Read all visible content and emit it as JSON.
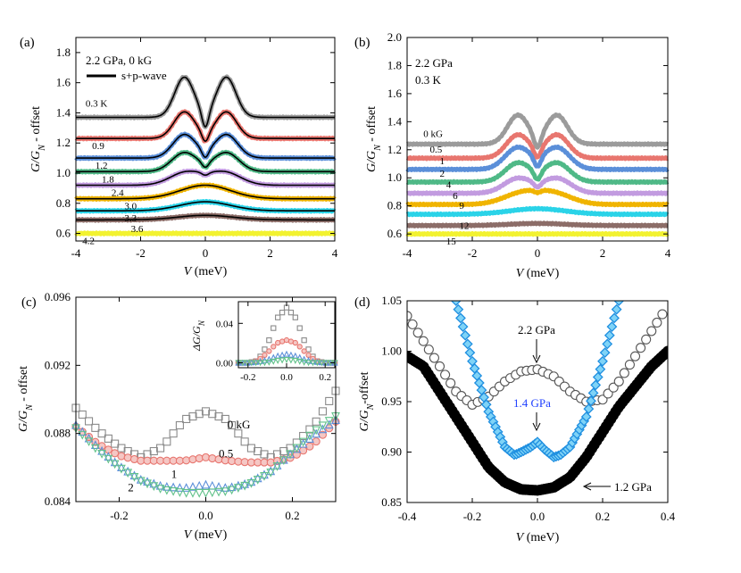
{
  "chart_data": [
    {
      "id": "a",
      "type": "line",
      "panel_label": "(a)",
      "xlabel": "V",
      "xunit": " (meV)",
      "ylabel": "G/G_N - offset",
      "xlim": [
        -4,
        4
      ],
      "ylim": [
        0.55,
        1.9
      ],
      "xticks": [
        -4,
        -2,
        0,
        2,
        4
      ],
      "yticks": [
        0.6,
        0.8,
        1.0,
        1.2,
        1.4,
        1.6,
        1.8
      ],
      "ytick_labels": [
        "0.6",
        "0.8",
        "1.0",
        "1.2",
        "1.4",
        "1.6",
        "1.8"
      ],
      "annotation_lines": [
        "2.2 GPa, 0 kG"
      ],
      "legend": [
        {
          "label": "s+p-wave",
          "style": "black line"
        }
      ],
      "series": [
        {
          "name": "0.3 K",
          "baseline": 1.37,
          "peak_height": 0.26,
          "peak_position": 0.65,
          "peak_width": 0.42,
          "dip_depth": 0.12,
          "color": "#9b9b9b"
        },
        {
          "name": "0.9",
          "baseline": 1.23,
          "peak_height": 0.17,
          "peak_position": 0.65,
          "peak_width": 0.45,
          "dip_depth": 0.07,
          "color": "#e8766f"
        },
        {
          "name": "1.2",
          "baseline": 1.1,
          "peak_height": 0.15,
          "peak_position": 0.65,
          "peak_width": 0.5,
          "dip_depth": 0.06,
          "color": "#5b8fd9"
        },
        {
          "name": "1.8",
          "baseline": 1.01,
          "peak_height": 0.12,
          "peak_position": 0.65,
          "peak_width": 0.55,
          "dip_depth": 0.04,
          "color": "#4fb987"
        },
        {
          "name": "2.4",
          "baseline": 0.92,
          "peak_height": 0.08,
          "peak_position": 0.6,
          "peak_width": 0.7,
          "dip_depth": 0.02,
          "color": "#c29be0"
        },
        {
          "name": "3.0",
          "baseline": 0.83,
          "peak_height": 0.09,
          "peak_position": 0.0,
          "peak_width": 1.1,
          "dip_depth": 0.0,
          "color": "#f0b400"
        },
        {
          "name": "3.3",
          "baseline": 0.75,
          "peak_height": 0.06,
          "peak_position": 0.0,
          "peak_width": 1.1,
          "dip_depth": 0.0,
          "color": "#2ad3e8"
        },
        {
          "name": "3.6",
          "baseline": 0.69,
          "peak_height": 0.03,
          "peak_position": 0.0,
          "peak_width": 1.2,
          "dip_depth": 0.0,
          "color": "#8c6d68"
        },
        {
          "name": "4.2",
          "baseline": 0.6,
          "peak_height": 0.0,
          "peak_position": 0.0,
          "peak_width": 1.0,
          "dip_depth": 0.0,
          "color": "#f2f230"
        }
      ]
    },
    {
      "id": "b",
      "type": "line",
      "panel_label": "(b)",
      "xlabel": "V",
      "xunit": " (meV)",
      "ylabel": "G/G_N - offset",
      "xlim": [
        -4,
        4
      ],
      "ylim": [
        0.55,
        2.0
      ],
      "xticks": [
        -4,
        -2,
        0,
        2,
        4
      ],
      "yticks": [
        0.6,
        0.8,
        1.0,
        1.2,
        1.4,
        1.6,
        1.8,
        2.0
      ],
      "ytick_labels": [
        "0.6",
        "0.8",
        "1.0",
        "1.2",
        "1.4",
        "1.6",
        "1.8",
        "2.0"
      ],
      "annotation_lines": [
        "2.2 GPa",
        "0.3 K"
      ],
      "series": [
        {
          "name": "0 kG",
          "baseline": 1.24,
          "peak_height": 0.2,
          "peak_position": 0.6,
          "peak_width": 0.45,
          "dip_depth": 0.1,
          "color": "#9b9b9b"
        },
        {
          "name": "0.5",
          "baseline": 1.14,
          "peak_height": 0.16,
          "peak_position": 0.6,
          "peak_width": 0.5,
          "dip_depth": 0.08,
          "color": "#e8766f"
        },
        {
          "name": "1",
          "baseline": 1.06,
          "peak_height": 0.15,
          "peak_position": 0.6,
          "peak_width": 0.55,
          "dip_depth": 0.08,
          "color": "#5b8fd9"
        },
        {
          "name": "2",
          "baseline": 0.97,
          "peak_height": 0.13,
          "peak_position": 0.6,
          "peak_width": 0.55,
          "dip_depth": 0.07,
          "color": "#4fb987"
        },
        {
          "name": "4",
          "baseline": 0.89,
          "peak_height": 0.1,
          "peak_position": 0.6,
          "peak_width": 0.6,
          "dip_depth": 0.04,
          "color": "#c29be0"
        },
        {
          "name": "6",
          "baseline": 0.81,
          "peak_height": 0.07,
          "peak_position": 0.5,
          "peak_width": 0.8,
          "dip_depth": 0.02,
          "color": "#f0b400"
        },
        {
          "name": "9",
          "baseline": 0.74,
          "peak_height": 0.04,
          "peak_position": 0.0,
          "peak_width": 1.2,
          "dip_depth": 0.0,
          "color": "#2ad3e8"
        },
        {
          "name": "12",
          "baseline": 0.66,
          "peak_height": 0.015,
          "peak_position": 0.0,
          "peak_width": 1.2,
          "dip_depth": 0.0,
          "color": "#8c6d68"
        },
        {
          "name": "15",
          "baseline": 0.6,
          "peak_height": 0.0,
          "peak_position": 0.0,
          "peak_width": 1.0,
          "dip_depth": 0.0,
          "color": "#f2f230"
        }
      ]
    },
    {
      "id": "c",
      "type": "scatter",
      "panel_label": "(c)",
      "xlabel": "V",
      "xunit": " (meV)",
      "ylabel": "G/G_N - offset",
      "xlim": [
        -0.3,
        0.3
      ],
      "ylim": [
        0.084,
        0.096
      ],
      "xticks": [
        -0.2,
        0.0,
        0.2
      ],
      "xtick_labels": [
        "-0.2",
        "0.0",
        "0.2"
      ],
      "yticks": [
        0.084,
        0.088,
        0.092,
        0.096
      ],
      "ytick_labels": [
        "0.084",
        "0.088",
        "0.092",
        "0.096"
      ],
      "series": [
        {
          "name": "0 kG",
          "marker": "square",
          "color": "#8a8a8a",
          "x": [
            -0.3,
            -0.25,
            -0.2,
            -0.15,
            -0.1,
            -0.05,
            0.0,
            0.05,
            0.1,
            0.15,
            0.2,
            0.25,
            0.3
          ],
          "y": [
            0.0895,
            0.0882,
            0.0872,
            0.0866,
            0.0872,
            0.0888,
            0.0893,
            0.0888,
            0.0872,
            0.0866,
            0.0872,
            0.0885,
            0.0905
          ]
        },
        {
          "name": "0.5",
          "marker": "circle",
          "color": "#e8766f",
          "x": [
            -0.3,
            -0.25,
            -0.2,
            -0.15,
            -0.1,
            -0.05,
            0.0,
            0.05,
            0.1,
            0.15,
            0.2,
            0.25,
            0.3
          ],
          "y": [
            0.0884,
            0.0874,
            0.0867,
            0.0864,
            0.0864,
            0.0864,
            0.0866,
            0.0864,
            0.0863,
            0.0863,
            0.0866,
            0.0874,
            0.0887
          ]
        },
        {
          "name": "1",
          "marker": "triangle-up",
          "color": "#5b8fd9",
          "x": [
            -0.3,
            -0.25,
            -0.2,
            -0.15,
            -0.1,
            -0.05,
            0.0,
            0.05,
            0.1,
            0.15,
            0.2,
            0.25,
            0.3
          ],
          "y": [
            0.0885,
            0.0872,
            0.0861,
            0.0853,
            0.0849,
            0.0848,
            0.085,
            0.0848,
            0.0851,
            0.0858,
            0.0869,
            0.0879,
            0.0888
          ]
        },
        {
          "name": "2",
          "marker": "triangle-down",
          "color": "#62c28a",
          "x": [
            -0.3,
            -0.25,
            -0.2,
            -0.15,
            -0.1,
            -0.05,
            0.0,
            0.05,
            0.1,
            0.15,
            0.2,
            0.25,
            0.3
          ],
          "y": [
            0.0883,
            0.087,
            0.086,
            0.0852,
            0.0847,
            0.0845,
            0.0845,
            0.0846,
            0.085,
            0.0857,
            0.0869,
            0.0881,
            0.089
          ]
        }
      ],
      "series_label_positions": [
        [
          0.05,
          0.0883
        ],
        [
          0.03,
          0.0866
        ],
        [
          -0.08,
          0.0854
        ],
        [
          -0.18,
          0.0846
        ]
      ],
      "inset": {
        "ylabel": "ΔG/G_N",
        "xlim": [
          -0.25,
          0.25
        ],
        "ylim": [
          -0.005,
          0.062
        ],
        "xticks": [
          -0.2,
          0.0,
          0.2
        ],
        "xtick_labels": [
          "-0.2",
          "0.0",
          "0.2"
        ],
        "yticks": [
          0.0,
          0.04
        ],
        "ytick_labels": [
          "0.00",
          "0.04"
        ],
        "series": [
          {
            "name": "0 kG",
            "marker": "square",
            "color": "#8a8a8a",
            "x": [
              -0.25,
              -0.2,
              -0.15,
              -0.1,
              -0.05,
              0.0,
              0.05,
              0.1,
              0.15,
              0.2,
              0.25
            ],
            "y": [
              0.0,
              0.0,
              0.002,
              0.018,
              0.045,
              0.056,
              0.045,
              0.018,
              0.002,
              0.0,
              0.0
            ]
          },
          {
            "name": "0.5",
            "marker": "circle",
            "color": "#e8766f",
            "x": [
              -0.25,
              -0.2,
              -0.15,
              -0.1,
              -0.05,
              0.0,
              0.05,
              0.1,
              0.15,
              0.2,
              0.25
            ],
            "y": [
              0.0,
              0.0,
              0.002,
              0.01,
              0.02,
              0.023,
              0.02,
              0.01,
              0.002,
              0.0,
              0.0
            ]
          },
          {
            "name": "1",
            "marker": "triangle-up",
            "color": "#5b8fd9",
            "x": [
              -0.25,
              -0.2,
              -0.15,
              -0.1,
              -0.05,
              0.0,
              0.05,
              0.1,
              0.15,
              0.2,
              0.25
            ],
            "y": [
              0.0,
              0.0,
              0.001,
              0.003,
              0.007,
              0.009,
              0.007,
              0.003,
              0.001,
              0.0,
              0.0
            ]
          },
          {
            "name": "2",
            "marker": "triangle-down",
            "color": "#62c28a",
            "x": [
              -0.25,
              -0.2,
              -0.15,
              -0.1,
              -0.05,
              0.0,
              0.05,
              0.1,
              0.15,
              0.2,
              0.25
            ],
            "y": [
              0.0,
              0.0,
              0.0,
              0.0,
              0.002,
              0.003,
              0.002,
              0.0,
              0.0,
              0.0,
              0.0
            ]
          }
        ]
      }
    },
    {
      "id": "d",
      "type": "scatter",
      "panel_label": "(d)",
      "xlabel": "V",
      "xunit": " (meV)",
      "ylabel": "G/G_N-offset",
      "xlim": [
        -0.4,
        0.4
      ],
      "ylim": [
        0.85,
        1.05
      ],
      "xticks": [
        -0.4,
        -0.2,
        0.0,
        0.2,
        0.4
      ],
      "xtick_labels": [
        "-0.4",
        "-0.2",
        "0.0",
        "0.2",
        "0.4"
      ],
      "yticks": [
        0.85,
        0.9,
        0.95,
        1.0,
        1.05
      ],
      "ytick_labels": [
        "0.85",
        "0.90",
        "0.95",
        "1.00",
        "1.05"
      ],
      "series": [
        {
          "name": "2.2 GPa",
          "marker": "open-circle",
          "color": "#555555",
          "x": [
            -0.4,
            -0.35,
            -0.3,
            -0.25,
            -0.2,
            -0.15,
            -0.1,
            -0.05,
            0.0,
            0.05,
            0.1,
            0.15,
            0.2,
            0.25,
            0.3,
            0.35,
            0.4
          ],
          "y": [
            1.035,
            1.01,
            0.985,
            0.96,
            0.947,
            0.955,
            0.97,
            0.98,
            0.982,
            0.975,
            0.96,
            0.95,
            0.952,
            0.97,
            0.995,
            1.02,
            1.045
          ]
        },
        {
          "name": "1.4 GPa",
          "marker": "diamond",
          "color": "#1f8fe0",
          "x": [
            -0.25,
            -0.2,
            -0.15,
            -0.1,
            -0.07,
            -0.05,
            -0.02,
            0.0,
            0.02,
            0.05,
            0.07,
            0.1,
            0.15,
            0.2,
            0.25
          ],
          "y": [
            1.05,
            0.99,
            0.94,
            0.905,
            0.897,
            0.9,
            0.905,
            0.91,
            0.903,
            0.895,
            0.897,
            0.905,
            0.935,
            0.99,
            1.05
          ]
        },
        {
          "name": "1.2 GPa",
          "marker": "filled-circle",
          "color": "#000000",
          "x": [
            -0.4,
            -0.35,
            -0.3,
            -0.25,
            -0.2,
            -0.15,
            -0.1,
            -0.05,
            0.0,
            0.05,
            0.1,
            0.15,
            0.2,
            0.25,
            0.3,
            0.35,
            0.4
          ],
          "y": [
            0.995,
            0.985,
            0.96,
            0.935,
            0.91,
            0.885,
            0.87,
            0.863,
            0.862,
            0.865,
            0.875,
            0.895,
            0.92,
            0.945,
            0.965,
            0.985,
            1.0
          ]
        }
      ],
      "annotations": [
        {
          "text": "2.2 GPa",
          "color": "#000000"
        },
        {
          "text": "1.4 GPa",
          "color": "#1f3fff"
        },
        {
          "text": "1.2 GPa",
          "color": "#000000"
        }
      ]
    }
  ]
}
